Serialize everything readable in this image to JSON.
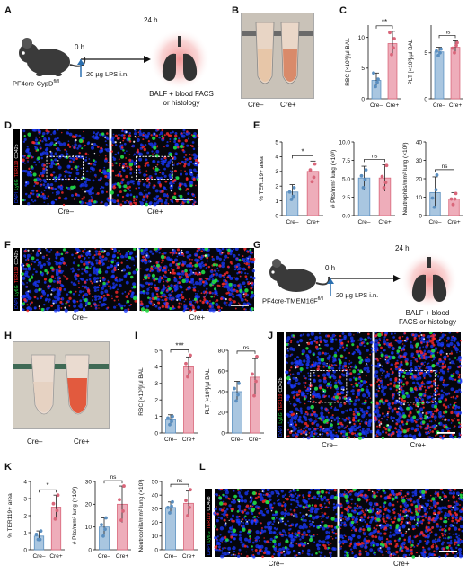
{
  "panel_letters": [
    "A",
    "B",
    "C",
    "D",
    "E",
    "F",
    "G",
    "H",
    "I",
    "J",
    "K",
    "L"
  ],
  "colors": {
    "cre_neg": "#5b8fc0",
    "cre_pos": "#d9667a",
    "cre_neg_fill": "#a9c6e0",
    "cre_pos_fill": "#eeadba",
    "dapi": "#1a3aff",
    "ly6g": "#22dd44",
    "ter119": "#ff2a2a",
    "cd42b": "#ffffff",
    "lung_glow": "#f3b0b0",
    "timeline_arrow": "#2a6fb0"
  },
  "panelA": {
    "mouse_label_main": "PF4cre-CypD",
    "mouse_label_sup": "fl/fl",
    "t0": "0 h",
    "t24": "24 h",
    "lps": "20 µg LPS i.n.",
    "readout": [
      "BALF + blood FACS",
      "or histology"
    ]
  },
  "panelB": {
    "labels": [
      "Cre–",
      "Cre+"
    ]
  },
  "panelG": {
    "mouse_label_main": "PF4cre-TMEM16F",
    "mouse_label_sup": "fl/fl",
    "t0": "0 h",
    "t24": "24 h",
    "lps": "20 µg LPS i.n.",
    "readout": [
      "BALF + blood",
      "FACS or histology"
    ]
  },
  "panelH": {
    "labels": [
      "Cre–",
      "Cre+"
    ]
  },
  "micrographs": {
    "D": {
      "labels": [
        "Cre–",
        "Cre+"
      ],
      "stain": [
        "DAPI",
        "Ly6G",
        "TER119",
        "CD42b"
      ]
    },
    "F": {
      "labels": [
        "Cre–",
        "Cre+"
      ],
      "stain": [
        "DAPI",
        "Ly6G",
        "TER119",
        "CD42b"
      ]
    },
    "J": {
      "labels": [
        "Cre–",
        "Cre+"
      ],
      "stain": [
        "DAPI",
        "Ly6G",
        "TER119",
        "CD42b"
      ]
    },
    "L": {
      "labels": [
        "Cre–",
        "Cre+"
      ],
      "stain": [
        "DAPI",
        "Ly6G",
        "TER119",
        "CD42b"
      ]
    }
  },
  "chart_data": [
    {
      "id": "C1",
      "type": "bar",
      "categories": [
        "Cre–",
        "Cre+"
      ],
      "values": [
        3.0,
        9.0
      ],
      "errors": [
        1.2,
        2.0
      ],
      "points": [
        [
          2.0,
          3.2,
          4.2,
          2.7
        ],
        [
          7.2,
          9.8,
          10.8,
          8.3
        ]
      ],
      "ylabel": "RBC [×10³]/µl BAL",
      "ylim": [
        0,
        12
      ],
      "yticks": [
        0,
        5,
        10
      ],
      "significance": "**"
    },
    {
      "id": "C2",
      "type": "bar",
      "categories": [
        "Cre–",
        "Cre+"
      ],
      "values": [
        5.1,
        5.6
      ],
      "errors": [
        0.5,
        0.7
      ],
      "points": [
        [
          4.7,
          5.4,
          5.2,
          5.0
        ],
        [
          5.0,
          6.1,
          5.5,
          5.8
        ]
      ],
      "ylabel": "PLT [×10³]/µl BAL",
      "ylim": [
        0,
        8
      ],
      "yticks": [
        0,
        5
      ],
      "significance": "ns"
    },
    {
      "id": "E1",
      "type": "bar",
      "categories": [
        "Cre–",
        "Cre+"
      ],
      "values": [
        1.6,
        3.0
      ],
      "errors": [
        0.5,
        0.7
      ],
      "points": [
        [
          1.1,
          1.9,
          1.6,
          1.3
        ],
        [
          2.3,
          3.5,
          3.1,
          2.6
        ]
      ],
      "ylabel": "% TER119+ area",
      "ylim": [
        0,
        5
      ],
      "yticks": [
        0,
        1,
        2,
        3,
        4,
        5
      ],
      "significance": "*"
    },
    {
      "id": "E2",
      "type": "bar",
      "categories": [
        "Cre–",
        "Cre+"
      ],
      "values": [
        5.1,
        5.1
      ],
      "errors": [
        1.6,
        1.8
      ],
      "points": [
        [
          3.8,
          6.2,
          5.4,
          4.9
        ],
        [
          3.8,
          6.8,
          5.3,
          4.5
        ]
      ],
      "ylabel": "# Plts/mm² lung (×10³)",
      "ylim": [
        0,
        10
      ],
      "yticks": [
        0.0,
        2.5,
        5.0,
        7.5,
        10.0
      ],
      "significance": "ns"
    },
    {
      "id": "E3",
      "type": "bar",
      "categories": [
        "Cre–",
        "Cre+"
      ],
      "values": [
        12.5,
        9.0
      ],
      "errors": [
        8.5,
        3.5
      ],
      "points": [
        [
          4.5,
          22.0,
          9.5,
          14.0
        ],
        [
          6.0,
          12.0,
          9.0,
          9.0
        ]
      ],
      "ylabel": "Neutrophils/mm² lung (×10³)",
      "ylim": [
        0,
        40
      ],
      "yticks": [
        0,
        10,
        20,
        30,
        40
      ],
      "significance": "ns"
    },
    {
      "id": "I1",
      "type": "bar",
      "categories": [
        "Cre–",
        "Cre+"
      ],
      "values": [
        0.8,
        4.0
      ],
      "errors": [
        0.3,
        0.6
      ],
      "points": [
        [
          0.5,
          1.0,
          0.9,
          0.7
        ],
        [
          3.4,
          4.7,
          4.2,
          3.7
        ]
      ],
      "ylabel": "RBC [×10³]/µl BAL",
      "ylim": [
        0,
        5
      ],
      "yticks": [
        0,
        1,
        2,
        3,
        4,
        5
      ],
      "significance": "***"
    },
    {
      "id": "I2",
      "type": "bar",
      "categories": [
        "Cre–",
        "Cre+"
      ],
      "values": [
        40,
        54
      ],
      "errors": [
        10,
        18
      ],
      "points": [
        [
          31,
          48,
          43,
          37
        ],
        [
          36,
          74,
          57,
          50
        ]
      ],
      "ylabel": "PLT [×10³]/µl BAL",
      "ylim": [
        0,
        80
      ],
      "yticks": [
        0,
        20,
        40,
        60,
        80
      ],
      "significance": "ns"
    },
    {
      "id": "K1",
      "type": "bar",
      "categories": [
        "Cre–",
        "Cre+"
      ],
      "values": [
        0.8,
        2.5
      ],
      "errors": [
        0.3,
        0.7
      ],
      "points": [
        [
          0.6,
          1.1,
          0.9,
          0.6
        ],
        [
          1.8,
          3.2,
          2.7,
          2.3
        ]
      ],
      "ylabel": "% TER119+ area",
      "ylim": [
        0,
        4
      ],
      "yticks": [
        0,
        1,
        2,
        3,
        4
      ],
      "significance": "*"
    },
    {
      "id": "K2",
      "type": "bar",
      "categories": [
        "Cre–",
        "Cre+"
      ],
      "values": [
        10,
        20
      ],
      "errors": [
        4,
        8
      ],
      "points": [
        [
          6,
          14,
          11,
          9
        ],
        [
          13,
          28,
          22,
          17
        ]
      ],
      "ylabel": "# Plts/mm² lung (×10³)",
      "ylim": [
        0,
        30
      ],
      "yticks": [
        0,
        10,
        20,
        30
      ],
      "significance": "ns"
    },
    {
      "id": "K3",
      "type": "bar",
      "categories": [
        "Cre–",
        "Cre+"
      ],
      "values": [
        31,
        34
      ],
      "errors": [
        4,
        9
      ],
      "points": [
        [
          27,
          35,
          31,
          32
        ],
        [
          25,
          44,
          36,
          31
        ]
      ],
      "ylabel": "Neutrophils/mm² lung (×10³)",
      "ylim": [
        0,
        50
      ],
      "yticks": [
        0,
        10,
        20,
        30,
        40,
        50
      ],
      "significance": "ns"
    }
  ]
}
